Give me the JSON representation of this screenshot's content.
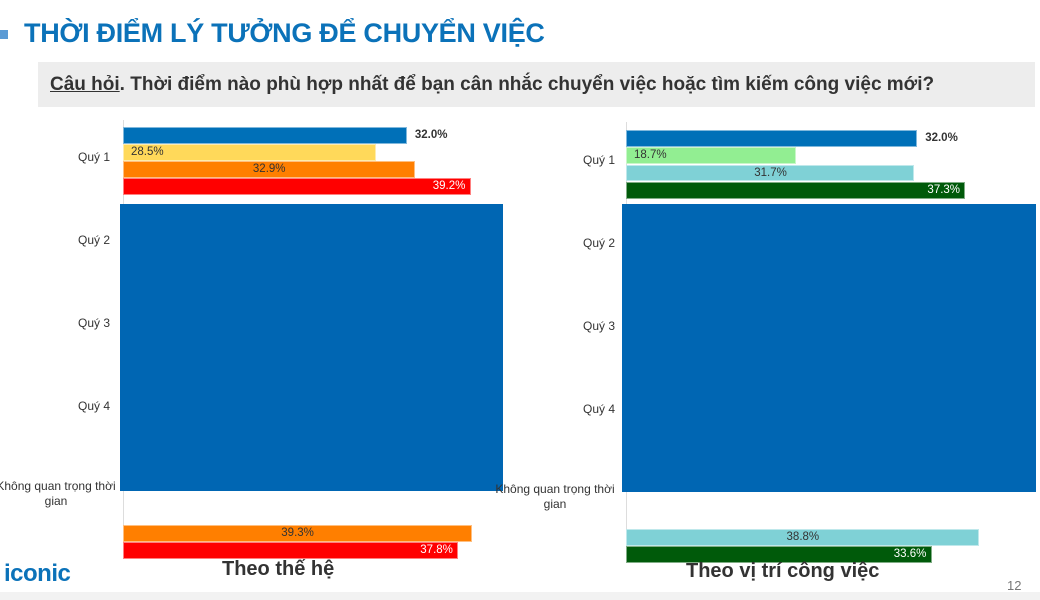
{
  "header": {
    "title": "THỜI ĐIỂM LÝ TƯỞNG ĐỂ CHUYỂN VIỆC",
    "question_prefix": "Câu hỏi",
    "question_text": ". Thời điểm nào phù hợp nhất để bạn cân nhắc chuyển việc hoặc tìm kiếm công việc mới?"
  },
  "footer": {
    "logo": "iconic",
    "page_number": "12"
  },
  "colors": {
    "title": "#0b72b9",
    "overlay": "#0066b3"
  },
  "chart_data": [
    {
      "type": "bar",
      "orientation": "horizontal",
      "caption": "Theo thế hệ",
      "categories": [
        "Quý 1",
        "Quý 2",
        "Quý 3",
        "Quý 4",
        "Không quan trọng thời gian"
      ],
      "series": [
        {
          "color": "#0070b8",
          "values": [
            32.0,
            null,
            null,
            null,
            null
          ]
        },
        {
          "color": "#ffd95a",
          "values": [
            28.5,
            null,
            null,
            null,
            null
          ]
        },
        {
          "color": "#ff7f00",
          "values": [
            32.9,
            null,
            null,
            null,
            39.3
          ]
        },
        {
          "color": "#ff0000",
          "values": [
            39.2,
            null,
            null,
            null,
            37.8
          ]
        }
      ],
      "value_format": "percent",
      "obscured": "Quý 2 – Quý 4 covered by a solid blue rectangle"
    },
    {
      "type": "bar",
      "orientation": "horizontal",
      "caption": "Theo vị trí công việc",
      "categories": [
        "Quý 1",
        "Quý 2",
        "Quý 3",
        "Quý 4",
        "Không quan trọng thời gian"
      ],
      "series": [
        {
          "color": "#0070b8",
          "values": [
            32.0,
            null,
            null,
            null,
            null
          ]
        },
        {
          "color": "#92ee92",
          "values": [
            18.7,
            null,
            null,
            null,
            null
          ]
        },
        {
          "color": "#7fd1d6",
          "values": [
            31.7,
            null,
            null,
            null,
            38.8
          ]
        },
        {
          "color": "#005a0a",
          "values": [
            37.3,
            null,
            null,
            null,
            33.6
          ]
        }
      ],
      "value_format": "percent",
      "obscured": "Quý 2 – Quý 4 covered by a solid blue rectangle"
    }
  ]
}
